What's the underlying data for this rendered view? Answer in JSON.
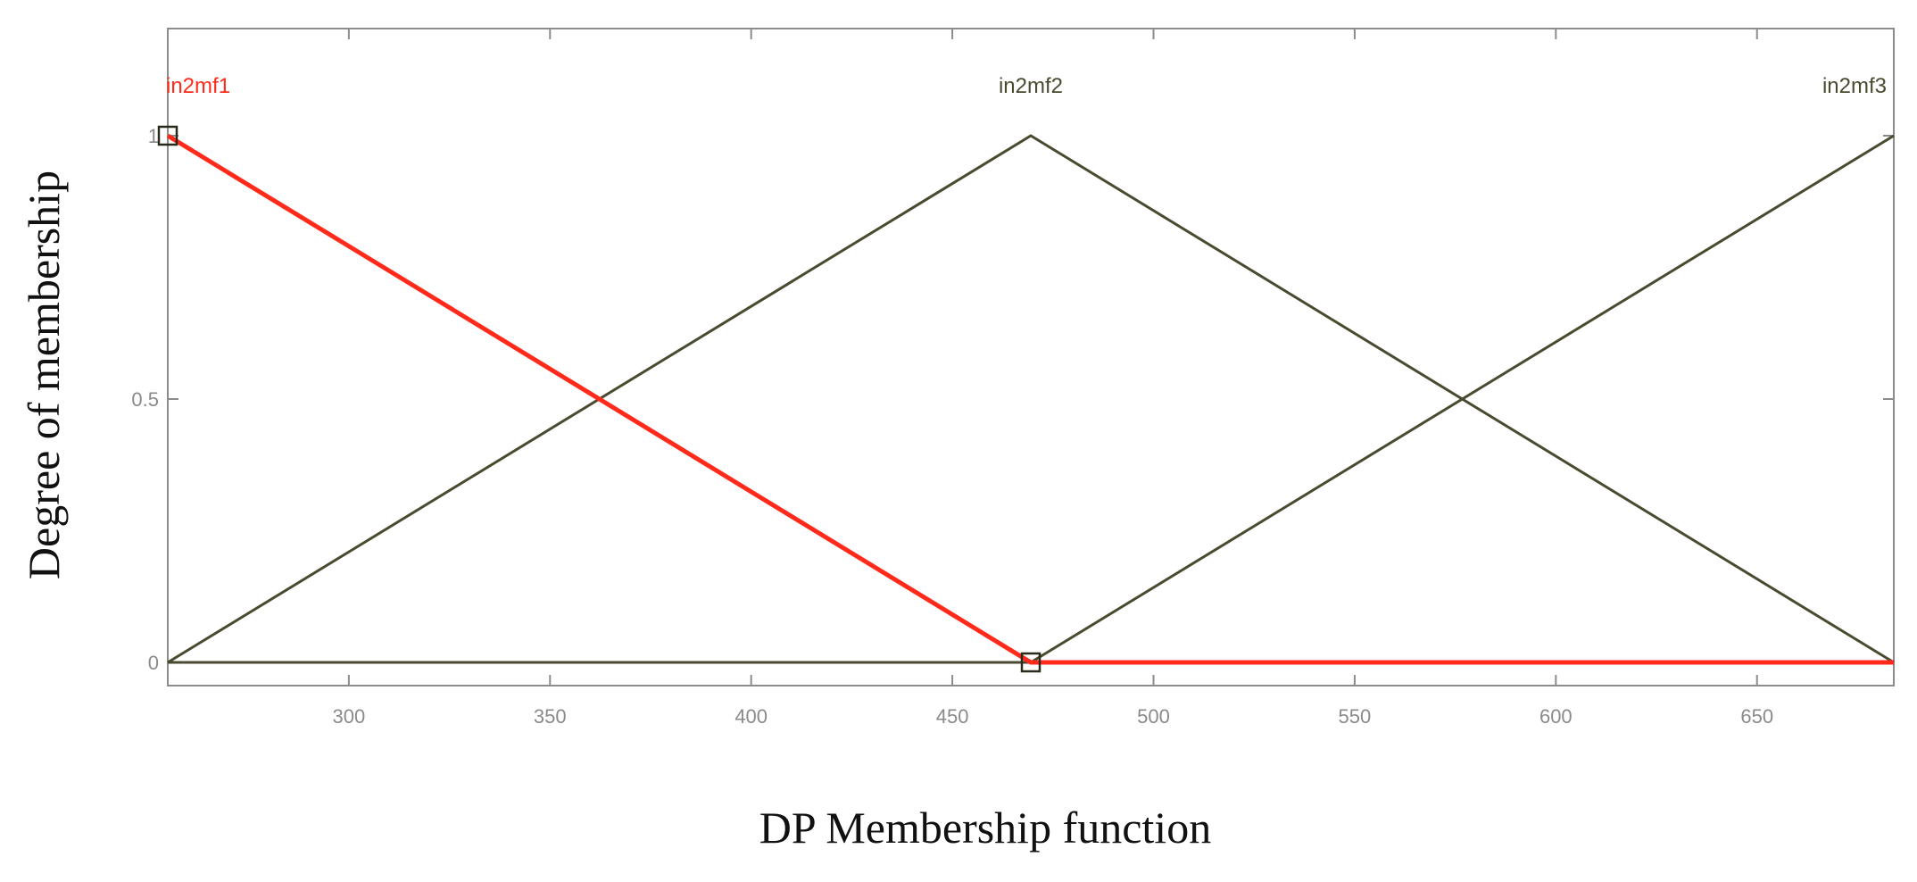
{
  "chart_data": {
    "type": "line",
    "title": "",
    "xlabel": "DP Membership function",
    "ylabel": "Degree of membership",
    "xlim": [
      255,
      684
    ],
    "ylim": [
      0,
      1
    ],
    "x_ticks": [
      300,
      350,
      400,
      450,
      500,
      550,
      600,
      650
    ],
    "y_ticks": [
      {
        "value": 0,
        "label": "0"
      },
      {
        "value": 0.5,
        "label": "0.5"
      },
      {
        "value": 1,
        "label": "1"
      }
    ],
    "grid": false,
    "series": [
      {
        "name": "in2mf1",
        "color": "#ff2a1a",
        "selected": true,
        "x": [
          255,
          469.5,
          684
        ],
        "y": [
          1,
          0,
          0
        ]
      },
      {
        "name": "in2mf2",
        "color": "#4a4a30",
        "selected": false,
        "x": [
          255,
          469.5,
          684
        ],
        "y": [
          0,
          1,
          0
        ]
      },
      {
        "name": "in2mf3",
        "color": "#4a4a30",
        "selected": false,
        "x": [
          255,
          469.5,
          684
        ],
        "y": [
          0,
          0,
          1
        ]
      }
    ],
    "handles": [
      {
        "x": 255,
        "y": 1
      },
      {
        "x": 469.5,
        "y": 0
      }
    ]
  }
}
